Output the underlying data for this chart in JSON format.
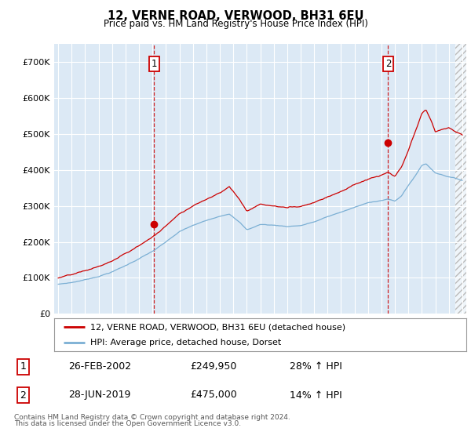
{
  "title": "12, VERNE ROAD, VERWOOD, BH31 6EU",
  "subtitle": "Price paid vs. HM Land Registry's House Price Index (HPI)",
  "legend_line1": "12, VERNE ROAD, VERWOOD, BH31 6EU (detached house)",
  "legend_line2": "HPI: Average price, detached house, Dorset",
  "sale1_label": "1",
  "sale1_date": "26-FEB-2002",
  "sale1_price_str": "£249,950",
  "sale1_price_val": 249950,
  "sale1_hpi": "28% ↑ HPI",
  "sale1_x": 2002.12,
  "sale2_label": "2",
  "sale2_date": "28-JUN-2019",
  "sale2_price_str": "£475,000",
  "sale2_price_val": 475000,
  "sale2_hpi": "14% ↑ HPI",
  "sale2_x": 2019.5,
  "footnote1": "Contains HM Land Registry data © Crown copyright and database right 2024.",
  "footnote2": "This data is licensed under the Open Government Licence v3.0.",
  "red_color": "#cc0000",
  "blue_color": "#7bafd4",
  "plot_bg": "#dce9f5",
  "hatch_start": 2024.5,
  "xlim_left": 1994.7,
  "xlim_right": 2025.3,
  "ylim": [
    0,
    750000
  ],
  "yticks": [
    0,
    100000,
    200000,
    300000,
    400000,
    500000,
    600000,
    700000
  ]
}
